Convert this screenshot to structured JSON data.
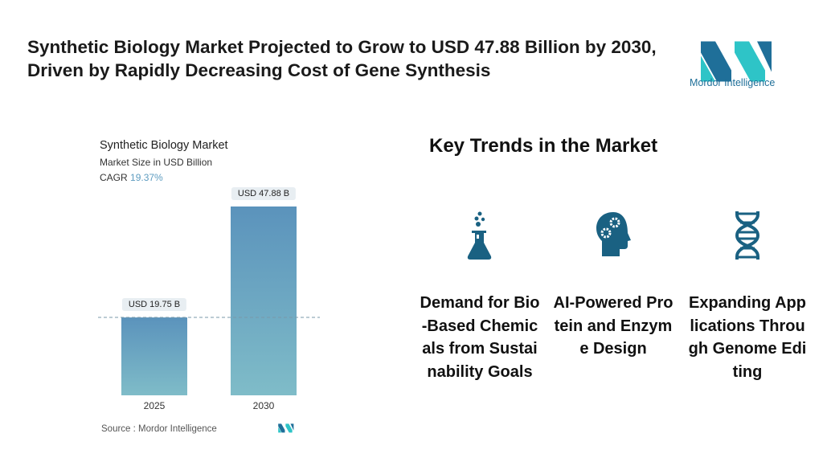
{
  "title": "Synthetic Biology Market Projected to Grow to USD 47.88 Billion by 2030, Driven by Rapidly Decreasing Cost of Gene Synthesis",
  "logo": {
    "text": "Mordor Intelligence"
  },
  "chart_data": {
    "type": "bar",
    "title": "Synthetic Biology Market",
    "subtitle": "Market Size in USD Billion",
    "cagr_label": "CAGR",
    "cagr_value": "19.37%",
    "categories": [
      "2025",
      "2030"
    ],
    "values": [
      19.75,
      47.88
    ],
    "data_labels": [
      "USD 19.75 B",
      "USD 47.88 B"
    ],
    "ylim": [
      0,
      50
    ],
    "grid": false,
    "colors": [
      "#5b93bc",
      "#7fbcc8"
    ],
    "source": "Source :  Mordor Intelligence"
  },
  "trends": {
    "heading": "Key Trends in the Market",
    "items": [
      {
        "icon": "flask-icon",
        "label": "Demand for Bio-Based Chemicals from Sustainability Goals"
      },
      {
        "icon": "head-gears-icon",
        "label": "AI-Powered Protein and Enzyme Design"
      },
      {
        "icon": "dna-icon",
        "label": "Expanding Applications Through Genome Editing"
      }
    ]
  },
  "colors": {
    "icon": "#1a6182",
    "accent": "#5d9cc0"
  }
}
